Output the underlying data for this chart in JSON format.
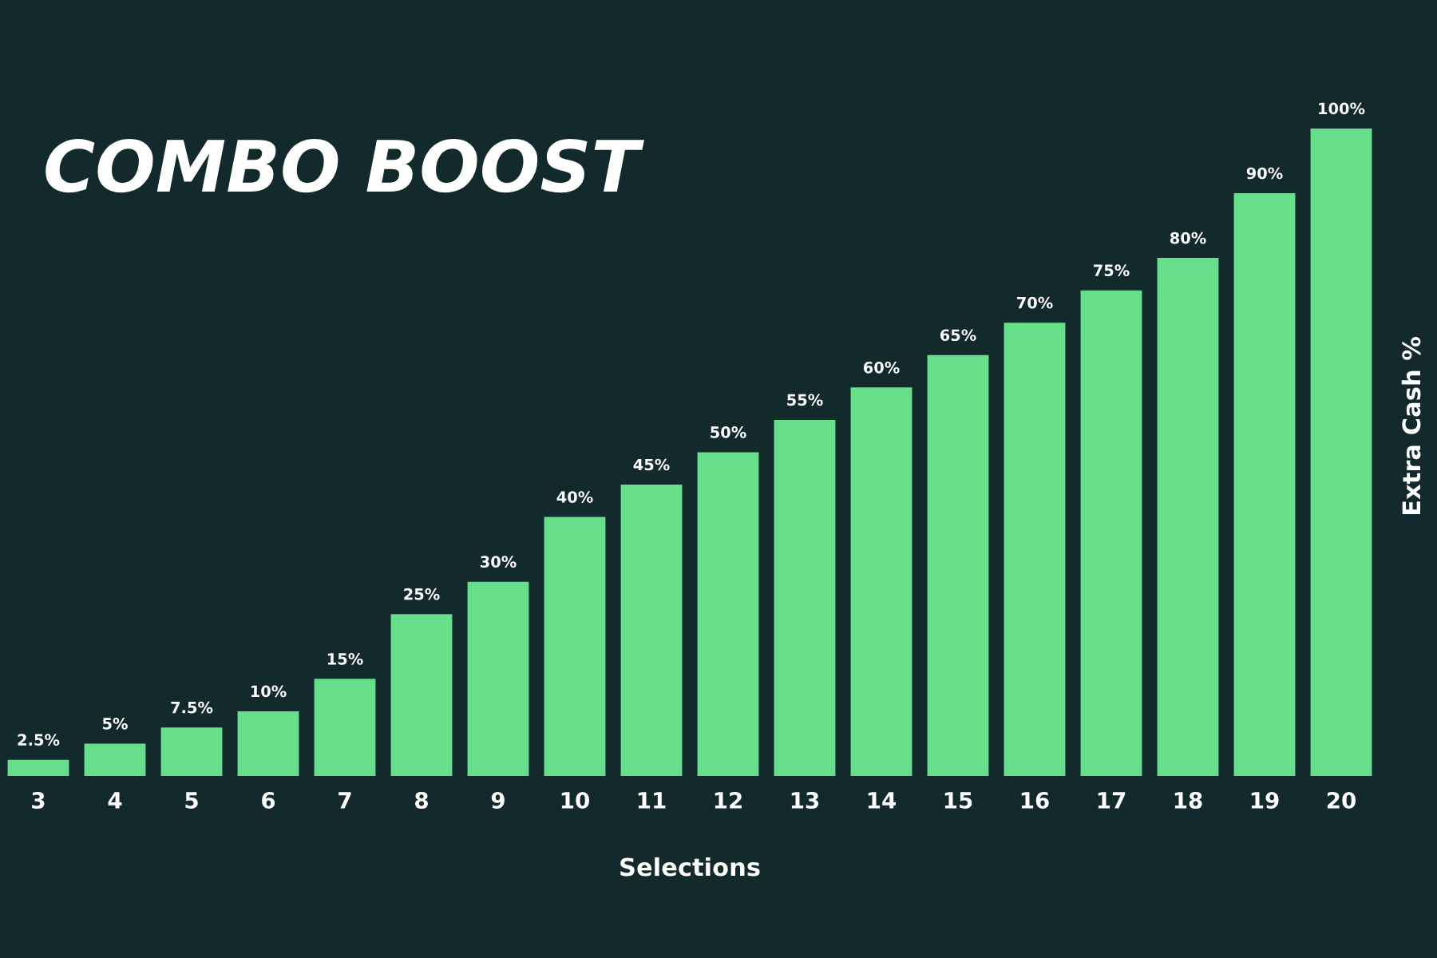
{
  "chart_data": {
    "type": "bar",
    "title": "COMBO BOOST",
    "xlabel": "Selections",
    "ylabel": "Extra Cash %",
    "categories": [
      "3",
      "4",
      "5",
      "6",
      "7",
      "8",
      "9",
      "10",
      "11",
      "12",
      "13",
      "14",
      "15",
      "16",
      "17",
      "18",
      "19",
      "20"
    ],
    "values": [
      2.5,
      5,
      7.5,
      10,
      15,
      25,
      30,
      40,
      45,
      50,
      55,
      60,
      65,
      70,
      75,
      80,
      90,
      100
    ],
    "value_labels": [
      "2.5%",
      "5%",
      "7.5%",
      "10%",
      "15%",
      "25%",
      "30%",
      "40%",
      "45%",
      "50%",
      "55%",
      "60%",
      "65%",
      "70%",
      "75%",
      "80%",
      "90%",
      "100%"
    ],
    "color": "#66de8a",
    "grid": false,
    "legend": false
  }
}
